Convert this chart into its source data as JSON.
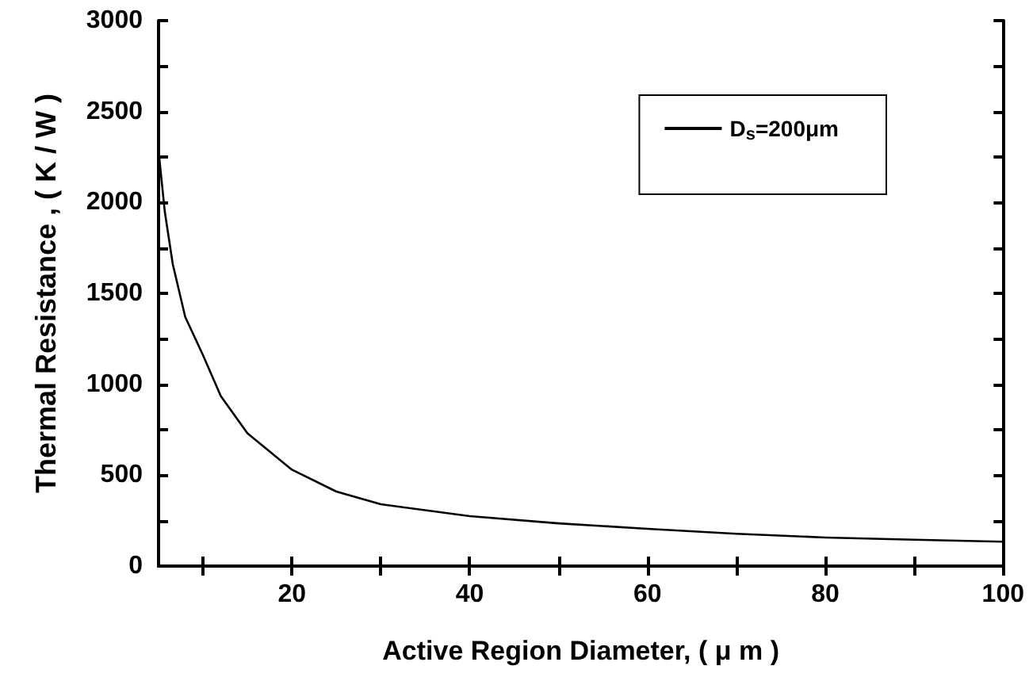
{
  "chart_data": {
    "type": "line",
    "xlabel": "Active Region Diameter, ( μ m )",
    "ylabel": "Thermal Resistance , ( K / W )",
    "xlim": [
      5,
      100
    ],
    "xticks": [
      {
        "value": 10,
        "label": null
      },
      20,
      {
        "value": 30,
        "label": null
      },
      40,
      {
        "value": 50,
        "label": null
      },
      60,
      {
        "value": 70,
        "label": null
      },
      80,
      {
        "value": 90,
        "label": null
      },
      100
    ],
    "ylim": [
      0,
      3000
    ],
    "yticks": [
      0,
      {
        "value": 250,
        "label": null
      },
      500,
      {
        "value": 750,
        "label": null
      },
      1000,
      {
        "value": 1250,
        "label": null
      },
      1500,
      {
        "value": 1750,
        "label": null
      },
      2000,
      {
        "value": 2250,
        "label": null
      },
      2500,
      {
        "value": 2750,
        "label": null
      },
      3000
    ],
    "x": [
      5,
      5.7,
      6.6,
      8,
      10,
      12,
      15,
      20,
      25,
      30,
      40,
      50,
      60,
      70,
      80,
      90,
      100
    ],
    "series": [
      {
        "name": "D$_{s}$=200μm",
        "color": "#000000",
        "values": [
          2285,
          1950,
          1660,
          1370,
          1160,
          935,
          730,
          530,
          410,
          340,
          275,
          235,
          205,
          178,
          157,
          145,
          134
        ]
      }
    ],
    "legend": "top right",
    "marker": "none",
    "line_style": "solid",
    "grid": false
  }
}
